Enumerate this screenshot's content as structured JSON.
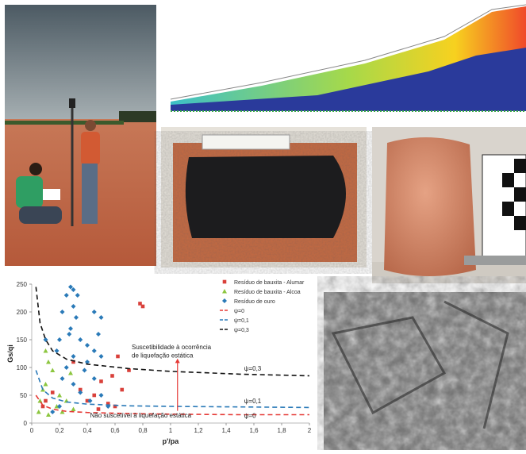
{
  "chart_data": {
    "type": "scatter",
    "ylabel": "Gs/qi",
    "xlabel": "p'/pa",
    "xlim": [
      0,
      2
    ],
    "ylim": [
      0,
      250
    ],
    "xticks": [
      0,
      {
        "value": 0.2,
        "label": "0,2"
      },
      {
        "value": 0.4,
        "label": "0,4"
      },
      {
        "value": 0.6,
        "label": "0,6"
      },
      {
        "value": 0.8,
        "label": "0,8"
      },
      1,
      {
        "value": 1.2,
        "label": "1,2"
      },
      {
        "value": 1.4,
        "label": "1,4"
      },
      {
        "value": 1.6,
        "label": "1,6"
      },
      {
        "value": 1.8,
        "label": "1,8"
      },
      2
    ],
    "yticks": [
      0,
      50,
      100,
      150,
      200,
      250
    ],
    "annotations": [
      "Suscetibilidade à ocorrência",
      "de liquefação estática",
      "Não suscetível à liquefação estática",
      "ψ=0,3",
      "ψ=0,1",
      "ψ=0"
    ],
    "series": [
      {
        "name": "Resíduo de bauxita - Alumar",
        "color": "#d9403a",
        "marker": "square",
        "x": [
          0.78,
          0.8,
          0.62,
          0.58,
          0.5,
          0.45,
          0.4,
          0.55,
          0.6,
          0.48,
          0.35,
          0.65,
          0.7,
          0.3,
          0.15,
          0.1,
          0.08
        ],
        "values": [
          215,
          210,
          120,
          85,
          75,
          50,
          40,
          35,
          30,
          25,
          60,
          60,
          95,
          110,
          55,
          40,
          30
        ]
      },
      {
        "name": "Resíduo de bauxita - Alcoa",
        "color": "#8cc63f",
        "marker": "triangle",
        "x": [
          0.05,
          0.1,
          0.12,
          0.15,
          0.1,
          0.08,
          0.2,
          0.25,
          0.18,
          0.22,
          0.3,
          0.12,
          0.06,
          0.28
        ],
        "values": [
          20,
          130,
          110,
          95,
          70,
          60,
          50,
          40,
          30,
          20,
          25,
          15,
          40,
          90
        ]
      },
      {
        "name": "Resíduo de ouro",
        "color": "#2a7ab8",
        "marker": "diamond",
        "x": [
          0.28,
          0.3,
          0.25,
          0.22,
          0.3,
          0.32,
          0.28,
          0.2,
          0.35,
          0.4,
          0.45,
          0.5,
          0.48,
          0.45,
          0.4,
          0.38,
          0.3,
          0.25,
          0.22,
          0.3,
          0.35,
          0.42,
          0.5,
          0.55,
          0.2,
          0.15,
          0.1,
          0.18,
          0.5,
          0.45,
          0.27,
          0.33
        ],
        "values": [
          245,
          240,
          230,
          200,
          210,
          190,
          170,
          150,
          150,
          140,
          200,
          190,
          160,
          130,
          110,
          95,
          120,
          100,
          80,
          70,
          55,
          40,
          50,
          30,
          30,
          20,
          150,
          130,
          120,
          80,
          160,
          230
        ]
      },
      {
        "name": "ψ=0",
        "color": "#e53935",
        "marker": "dashed",
        "x": [
          0.03,
          0.08,
          0.15,
          0.25,
          0.4,
          0.7,
          1.0,
          1.5,
          2
        ],
        "values": [
          50,
          32,
          25,
          21,
          19,
          17,
          16,
          15,
          15
        ]
      },
      {
        "name": "ψ=0,1",
        "color": "#2a7ab8",
        "marker": "dashed",
        "x": [
          0.03,
          0.08,
          0.15,
          0.25,
          0.4,
          0.7,
          1.0,
          1.5,
          2
        ],
        "values": [
          95,
          60,
          45,
          38,
          34,
          31,
          30,
          29,
          28
        ]
      },
      {
        "name": "ψ=0,3",
        "color": "#111111",
        "marker": "dashed",
        "x": [
          0.03,
          0.06,
          0.1,
          0.15,
          0.25,
          0.4,
          0.7,
          1.0,
          1.5,
          2
        ],
        "values": [
          245,
          180,
          150,
          130,
          115,
          106,
          98,
          93,
          88,
          85
        ]
      }
    ]
  }
}
